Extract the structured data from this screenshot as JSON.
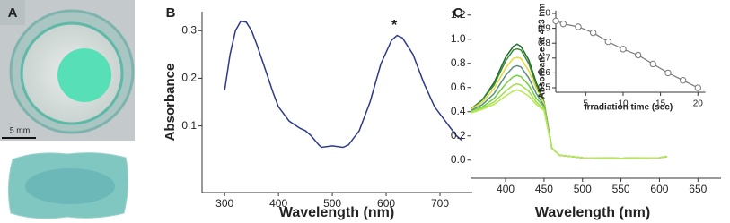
{
  "panel_a": {
    "label": "A",
    "scale_bar": "5 mm"
  },
  "chart_data": [
    {
      "type": "line",
      "panel_label": "B",
      "annotation": "*",
      "annotation_x": 615,
      "annotation_y": 0.31,
      "x_label": "Wavelength (nm)",
      "y_label": "Absorbance",
      "color": "#2b3a8c",
      "x": [
        300,
        310,
        320,
        330,
        340,
        350,
        360,
        375,
        390,
        400,
        420,
        440,
        450,
        460,
        475,
        480,
        500,
        520,
        530,
        550,
        570,
        590,
        610,
        620,
        630,
        650,
        670,
        690,
        710,
        730,
        740
      ],
      "values": [
        0.175,
        0.25,
        0.3,
        0.32,
        0.318,
        0.3,
        0.27,
        0.22,
        0.17,
        0.14,
        0.11,
        0.095,
        0.09,
        0.08,
        0.06,
        0.055,
        0.058,
        0.055,
        0.06,
        0.09,
        0.15,
        0.23,
        0.28,
        0.29,
        0.285,
        0.25,
        0.19,
        0.14,
        0.11,
        0.08,
        0.07
      ],
      "xlim": [
        258,
        760
      ],
      "ylim": [
        -0.04,
        0.34
      ],
      "xticks": [
        300,
        400,
        500,
        600,
        700
      ],
      "yticks": [
        0.1,
        0.2,
        0.3
      ]
    },
    {
      "type": "line",
      "panel_label": "C",
      "x_label": "Wavelength (nm)",
      "x": [
        355,
        370,
        385,
        400,
        410,
        415,
        420,
        430,
        440,
        450,
        460,
        470,
        500,
        550,
        600,
        610
      ],
      "series": [
        {
          "color": "#1f6b2a",
          "values": [
            0.42,
            0.5,
            0.64,
            0.85,
            0.94,
            0.96,
            0.94,
            0.83,
            0.64,
            0.48,
            0.1,
            0.04,
            0.02,
            0.015,
            0.02,
            0.03
          ]
        },
        {
          "color": "#3d8b3a",
          "values": [
            0.42,
            0.5,
            0.62,
            0.82,
            0.91,
            0.92,
            0.91,
            0.8,
            0.62,
            0.48,
            0.1,
            0.04,
            0.02,
            0.015,
            0.02,
            0.03
          ]
        },
        {
          "color": "#e3dc3c",
          "values": [
            0.42,
            0.48,
            0.59,
            0.76,
            0.84,
            0.85,
            0.84,
            0.74,
            0.59,
            0.47,
            0.1,
            0.04,
            0.02,
            0.015,
            0.02,
            0.03
          ]
        },
        {
          "color": "#5c8f8a",
          "values": [
            0.41,
            0.46,
            0.55,
            0.7,
            0.77,
            0.78,
            0.77,
            0.68,
            0.55,
            0.45,
            0.1,
            0.04,
            0.02,
            0.015,
            0.02,
            0.03
          ]
        },
        {
          "color": "#6fd13a",
          "values": [
            0.4,
            0.44,
            0.51,
            0.63,
            0.69,
            0.7,
            0.69,
            0.62,
            0.51,
            0.44,
            0.1,
            0.04,
            0.02,
            0.015,
            0.02,
            0.03
          ]
        },
        {
          "color": "#9fe04a",
          "values": [
            0.4,
            0.43,
            0.48,
            0.57,
            0.62,
            0.63,
            0.62,
            0.57,
            0.48,
            0.42,
            0.1,
            0.04,
            0.02,
            0.015,
            0.02,
            0.03
          ]
        },
        {
          "color": "#b8e856",
          "values": [
            0.39,
            0.42,
            0.46,
            0.53,
            0.57,
            0.58,
            0.57,
            0.53,
            0.46,
            0.41,
            0.1,
            0.04,
            0.02,
            0.015,
            0.02,
            0.03
          ]
        }
      ],
      "xlim": [
        355,
        680
      ],
      "ylim": [
        -0.15,
        1.25
      ],
      "xticks": [
        400,
        450,
        500,
        550,
        600,
        650
      ],
      "yticks": [
        {
          "value": 0,
          "label": "0.0"
        },
        0.2,
        0.4,
        0.6,
        0.8,
        {
          "value": 1,
          "label": "1.0"
        },
        1.2
      ]
    },
    {
      "type": "line",
      "x_label": "Irradiation time (sec)",
      "y_label": "Absorbance at 413 nm",
      "color": "#777777",
      "x": [
        1,
        2,
        4,
        6,
        8,
        10,
        12,
        14,
        16,
        18,
        20
      ],
      "values": [
        0.95,
        0.93,
        0.91,
        0.87,
        0.81,
        0.76,
        0.72,
        0.66,
        0.6,
        0.55,
        0.5
      ],
      "xlim": [
        1,
        21
      ],
      "ylim": [
        0.47,
        1.02
      ],
      "xticks": [
        5,
        10,
        15,
        20
      ],
      "yticks": [
        0.5,
        0.6,
        0.7,
        0.8,
        0.9,
        {
          "value": 1,
          "label": "1.0"
        }
      ]
    }
  ]
}
